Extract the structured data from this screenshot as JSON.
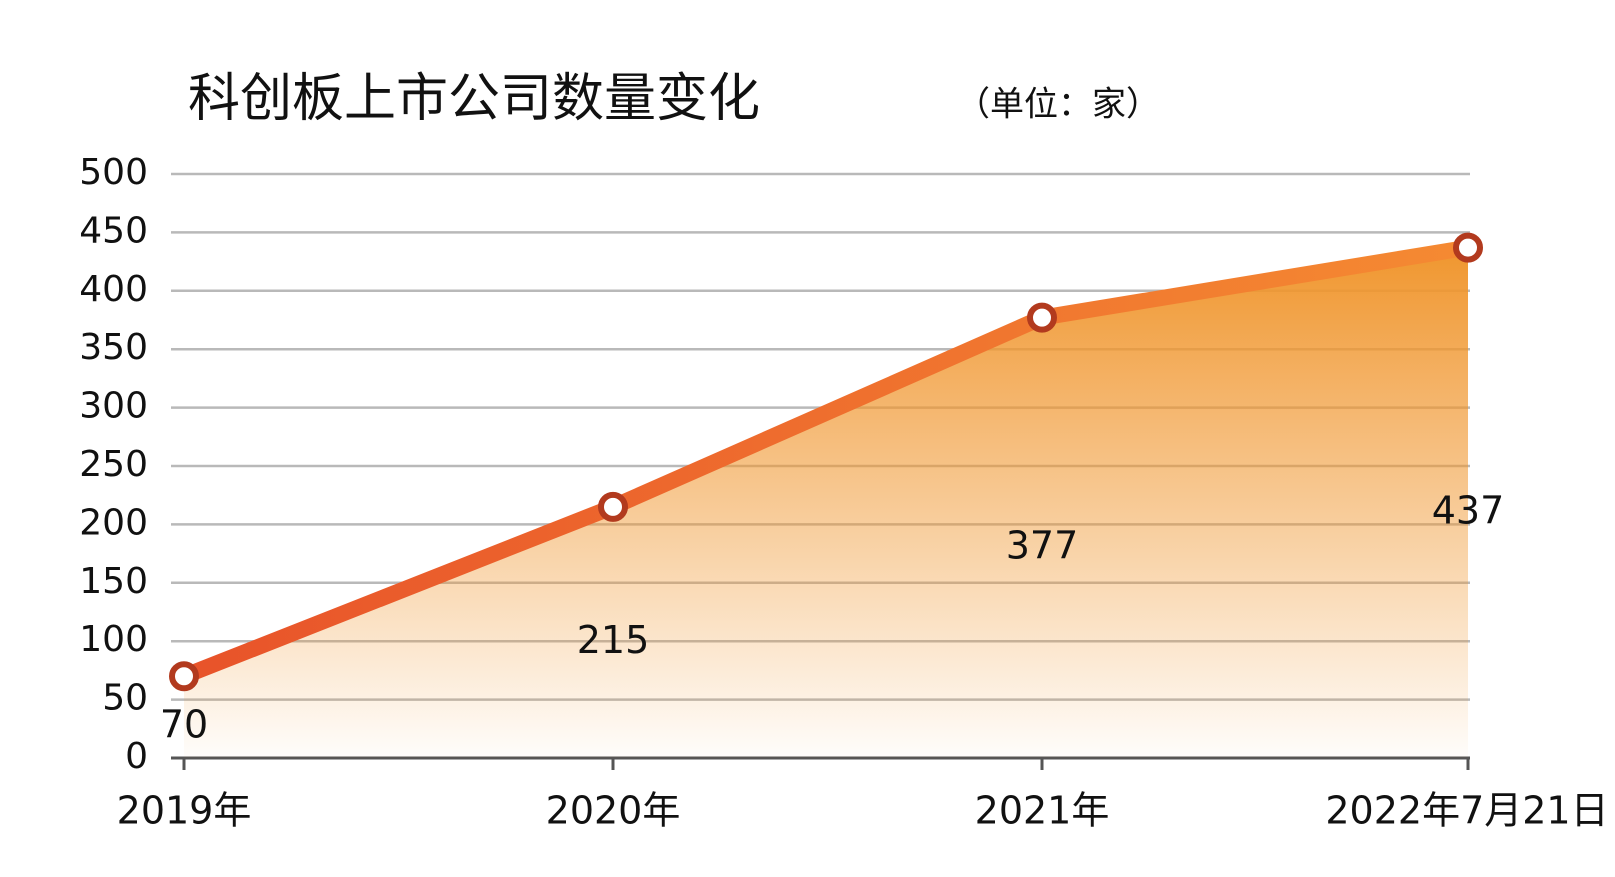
{
  "chart_data": {
    "type": "area-line",
    "title": "科创板上市公司数量变化",
    "subtitle": "（单位：家）",
    "categories": [
      "2019年",
      "2020年",
      "2021年",
      "2022年7月21日"
    ],
    "values": [
      70,
      215,
      377,
      437
    ],
    "color": "#e8532a",
    "area_color": "#f0962e",
    "marker_stroke": "#b23a1e",
    "ylim": [
      0,
      500
    ],
    "yticks": [
      0,
      50,
      100,
      150,
      200,
      250,
      300,
      350,
      400,
      450,
      500
    ],
    "grid": true
  }
}
